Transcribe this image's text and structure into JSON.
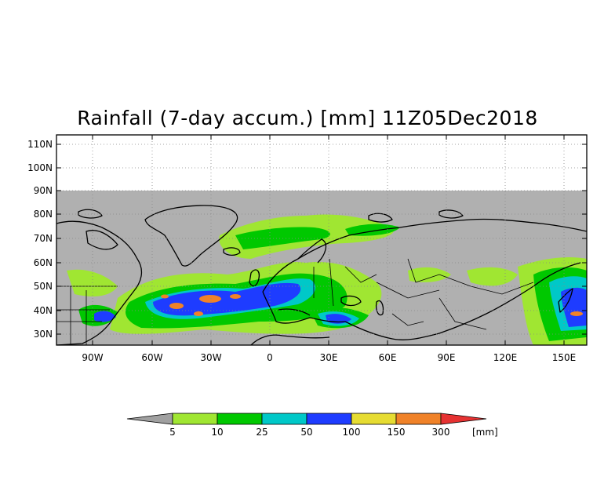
{
  "title": "Rainfall (7-day accum.) [mm] 11Z05Dec2018",
  "lat_labels": [
    "110N",
    "100N",
    "90N",
    "80N",
    "70N",
    "60N",
    "50N",
    "40N",
    "30N"
  ],
  "lon_labels": [
    "90W",
    "60W",
    "30W",
    "0",
    "30E",
    "60E",
    "90E",
    "120E",
    "150E"
  ],
  "colorbar": {
    "ticks": [
      "5",
      "10",
      "25",
      "50",
      "100",
      "150",
      "300"
    ],
    "unit": "[mm]",
    "colors": [
      "#a0a0a0",
      "#a0e632",
      "#00c800",
      "#00c8c8",
      "#1e3cff",
      "#e6dc32",
      "#f08228",
      "#e63232"
    ]
  },
  "colors": {
    "no_data": "#b0b0b0",
    "background": "#ffffff"
  }
}
